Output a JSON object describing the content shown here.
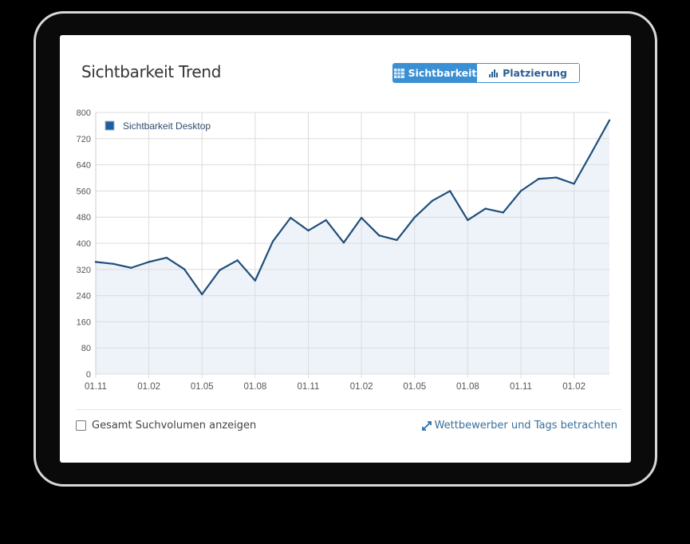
{
  "card": {
    "title": "Sichtbarkeit Trend",
    "toggle": [
      {
        "label": "Sichtbarkeit",
        "icon": "grid-table-icon",
        "active": true
      },
      {
        "label": "Platzierung",
        "icon": "bar-chart-icon",
        "active": false
      }
    ],
    "checkbox_label": "Gesamt Suchvolumen anzeigen",
    "checkbox_checked": false,
    "link_label": "Wettbewerber und Tags betrachten",
    "link_icon": "expand-arrows-icon"
  },
  "chart_data": {
    "type": "area",
    "series": [
      {
        "name": "Sichtbarkeit Desktop",
        "color": "#1f4e7a",
        "values": [
          343,
          337,
          325,
          343,
          356,
          321,
          244,
          318,
          348,
          286,
          406,
          478,
          439,
          471,
          402,
          478,
          424,
          410,
          479,
          530,
          560,
          471,
          506,
          494,
          560,
          597,
          601,
          582,
          678,
          776
        ]
      }
    ],
    "x_tick_labels": [
      "01.11",
      "01.02",
      "01.05",
      "01.08",
      "01.11",
      "01.02",
      "01.05",
      "01.08",
      "01.11",
      "01.02"
    ],
    "x_tick_every": 3,
    "yticks": [
      0,
      80,
      160,
      240,
      320,
      400,
      480,
      560,
      640,
      720,
      800
    ],
    "ylim": [
      0,
      800
    ],
    "grid": true,
    "legend": "top-left",
    "fill_color": "#eef3f9"
  }
}
